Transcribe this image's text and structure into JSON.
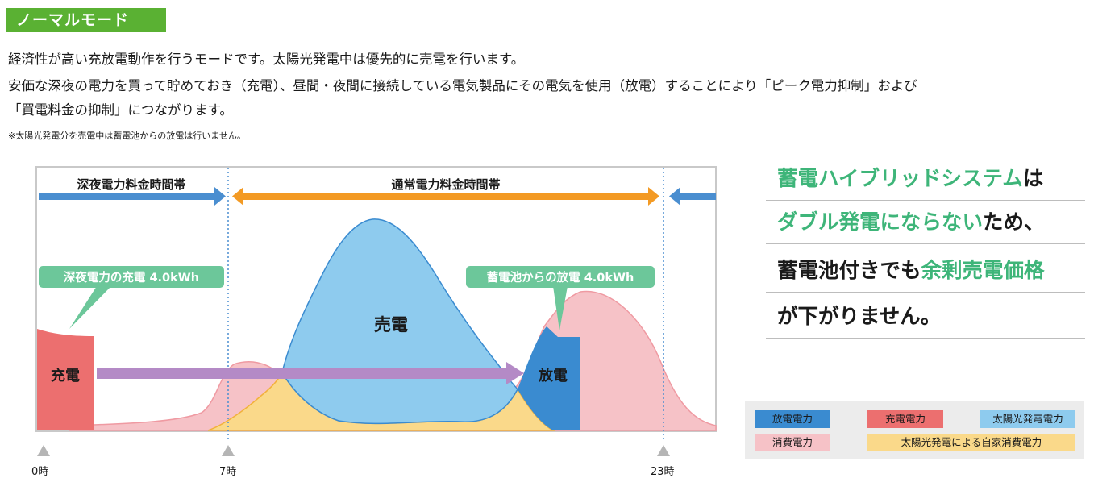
{
  "header": {
    "mode_title": "ノーマルモード"
  },
  "description": {
    "line1": "経済性が高い充放電動作を行うモードです。太陽光発電中は優先的に売電を行います。",
    "line2": "安価な深夜の電力を買って貯めておき（充電）、昼間・夜間に接続している電気製品にその電気を使用（放電）することにより「ピーク電力抑制」および",
    "line3": "「買電料金の抑制」につながります。",
    "note": "※太陽光発電分を売電中は蓄電池からの放電は行いません。"
  },
  "diagram": {
    "band_night": "深夜電力料金時間帯",
    "band_day": "通常電力料金時間帯",
    "callout_charge": "深夜電力の充電 4.0kWh",
    "callout_discharge": "蓄電池からの放電 4.0kWh",
    "label_sell": "売電",
    "label_charge": "充電",
    "label_discharge": "放電",
    "ticks": [
      "0時",
      "7時",
      "23時"
    ]
  },
  "promo": {
    "l1a": "蓄電ハイブリッドシステム",
    "l1b": "は",
    "l2a": "ダブル発電にならない",
    "l2b": "ため、",
    "l3a": "蓄電池付きでも",
    "l3b": "余剰売電価格",
    "l4": "が下がりません。"
  },
  "legend": {
    "discharge": "放電電力",
    "charge": "充電電力",
    "solar": "太陽光発電電力",
    "consumption": "消費電力",
    "self_use": "太陽光発電による自家消費電力"
  },
  "colors": {
    "green_badge": "#5ab133",
    "green_text": "#3eb579",
    "callout": "#6cc79a",
    "night_arrow": "#4a8ed0",
    "day_arrow": "#f39a24",
    "solar": "#8ecbee",
    "discharge": "#3a8bd0",
    "charge": "#ec6f6f",
    "consumption": "#f6c2c7",
    "self_use": "#fad98a",
    "flow_arrow": "#b48ac6"
  }
}
